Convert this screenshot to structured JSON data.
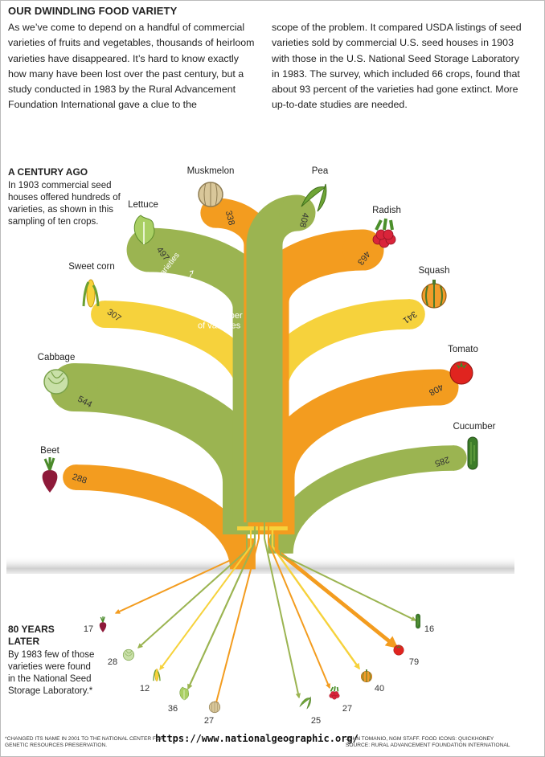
{
  "header": {
    "title": "OUR DWINDLING FOOD VARIETY",
    "intro_left": "As we’ve come to depend on a handful of commercial varieties of fruits and vegetables, thousands of heirloom varieties have disappeared. It’s hard to know exactly how many have been lost over the past century, but a study conducted in 1983 by the Rural Advancement Foundation International gave a clue to the",
    "intro_right": "scope of the problem. It compared USDA listings of seed varieties sold by commercial U.S. seed houses in 1903 with those in the U.S. National Seed Storage Laboratory in 1983. The survey, which included 66 crops, found that about 93 percent of the varieties had gone extinct. More up-to-date studies are needed."
  },
  "sidebar": {
    "century_heading": "A CENTURY AGO",
    "century_text": "In 1903 commercial seed houses offered hundreds of varieties, as shown in this sampling of ten crops.",
    "later_heading": "80 YEARS LATER",
    "later_text": "By 1983 few of those varieties were found in the National Seed Storage Laboratory.*",
    "width_note": "Width equals the number of varieties"
  },
  "chart_data": {
    "type": "bar",
    "categories": [
      "Beet",
      "Cabbage",
      "Sweet corn",
      "Lettuce",
      "Muskmelon",
      "Pea",
      "Radish",
      "Squash",
      "Tomato",
      "Cucumber"
    ],
    "series": [
      {
        "name": "1903",
        "values": [
          288,
          544,
          307,
          497,
          338,
          408,
          463,
          341,
          408,
          285
        ]
      },
      {
        "name": "1983",
        "values": [
          17,
          28,
          12,
          36,
          27,
          25,
          27,
          40,
          79,
          16
        ]
      }
    ],
    "unit_label": "varieties",
    "colors": {
      "orange": "#f39c1f",
      "green": "#9bb451",
      "yellow": "#f6d23c"
    },
    "icons": [
      "beet-icon",
      "cabbage-icon",
      "corn-icon",
      "lettuce-icon",
      "melon-icon",
      "pea-icon",
      "radish-icon",
      "squash-icon",
      "tomato-icon",
      "cucumber-icon"
    ]
  },
  "footer": {
    "note": "*CHANGED ITS NAME IN 2001 TO THE NATIONAL CENTER FOR GENETIC RESOURCES PRESERVATION.",
    "credit": "JOHN TOMANIO, NGM STAFF. FOOD ICONS: QUICKHONEY",
    "source": "SOURCE: RURAL ADVANCEMENT FOUNDATION INTERNATIONAL",
    "url": "https://www.nationalgeographic.org/"
  }
}
